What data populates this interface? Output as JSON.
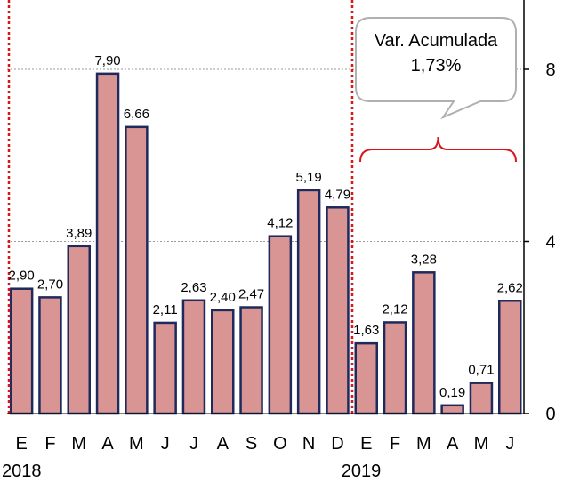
{
  "chart_data": {
    "type": "bar",
    "categories": [
      "E",
      "F",
      "M",
      "A",
      "M",
      "J",
      "J",
      "A",
      "S",
      "O",
      "N",
      "D",
      "E",
      "F",
      "M",
      "A",
      "M",
      "J"
    ],
    "values": [
      2.9,
      2.7,
      3.89,
      7.9,
      6.66,
      2.11,
      2.63,
      2.4,
      2.47,
      4.12,
      5.19,
      4.79,
      1.63,
      2.12,
      3.28,
      0.19,
      0.71,
      2.62
    ],
    "data_labels": [
      "2,90",
      "2,70",
      "3,89",
      "7,90",
      "6,66",
      "2,11",
      "2,63",
      "2,40",
      "2,47",
      "4,12",
      "5,19",
      "4,79",
      "1,63",
      "2,12",
      "3,28",
      "0,19",
      "0,71",
      "2,62"
    ],
    "years": [
      {
        "label": "2018",
        "start_index": 0
      },
      {
        "label": "2019",
        "start_index": 12
      }
    ],
    "ylim": [
      0,
      9.6
    ],
    "y_ticks": [
      0,
      4,
      8
    ],
    "y_tick_labels": [
      "0",
      "4",
      "8"
    ],
    "y_axis_side": "right",
    "grid": "horizontal dotted",
    "bar_color": "#d99594",
    "bar_border_color": "#1f2a5c",
    "separator_color": "#d9141b",
    "brace_color": "#d9141b",
    "callout": {
      "line1": "Var. Acumulada",
      "line2": "1,73%",
      "applies_from_index": 12,
      "applies_to_index": 17
    }
  }
}
